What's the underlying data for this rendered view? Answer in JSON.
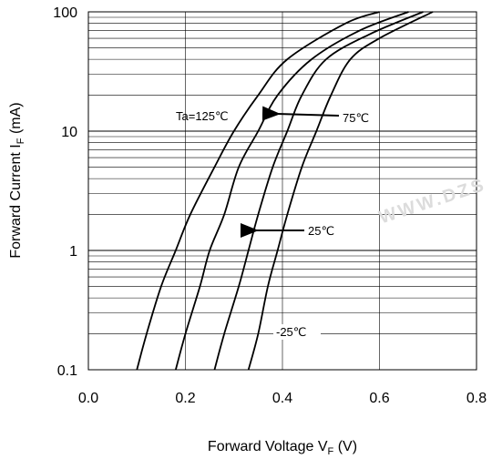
{
  "chart_data": {
    "type": "line",
    "title": "",
    "xlabel_main": "Forward Voltage  V",
    "xlabel_sub": "F",
    "xlabel_unit": " (V)",
    "ylabel_main": "Forward Current  I",
    "ylabel_sub": "F",
    "ylabel_unit": " (mA)",
    "x_scale": "linear",
    "y_scale": "log",
    "xlim": [
      0.0,
      0.8
    ],
    "ylim": [
      0.1,
      100
    ],
    "x_ticks": [
      0.0,
      0.2,
      0.4,
      0.6,
      0.8
    ],
    "x_tick_labels": [
      "0.0",
      "0.2",
      "0.4",
      "0.6",
      "0.8"
    ],
    "y_ticks": [
      0.1,
      1,
      10,
      100
    ],
    "y_tick_labels": [
      "0.1",
      "1",
      "10",
      "100"
    ],
    "grid": true,
    "series": [
      {
        "name": "Ta=125℃",
        "points": [
          [
            0.1,
            0.1
          ],
          [
            0.12,
            0.2
          ],
          [
            0.15,
            0.5
          ],
          [
            0.18,
            1
          ],
          [
            0.21,
            2
          ],
          [
            0.26,
            5
          ],
          [
            0.3,
            10
          ],
          [
            0.35,
            20
          ],
          [
            0.41,
            40
          ],
          [
            0.53,
            80
          ],
          [
            0.6,
            100
          ]
        ]
      },
      {
        "name": "75℃",
        "points": [
          [
            0.18,
            0.1
          ],
          [
            0.2,
            0.2
          ],
          [
            0.23,
            0.5
          ],
          [
            0.25,
            1
          ],
          [
            0.28,
            2
          ],
          [
            0.31,
            5
          ],
          [
            0.35,
            10
          ],
          [
            0.39,
            20
          ],
          [
            0.46,
            40
          ],
          [
            0.56,
            70
          ],
          [
            0.66,
            100
          ]
        ]
      },
      {
        "name": "25℃",
        "points": [
          [
            0.26,
            0.1
          ],
          [
            0.28,
            0.2
          ],
          [
            0.31,
            0.5
          ],
          [
            0.33,
            1
          ],
          [
            0.35,
            2
          ],
          [
            0.38,
            5
          ],
          [
            0.41,
            10
          ],
          [
            0.44,
            20
          ],
          [
            0.49,
            40
          ],
          [
            0.58,
            65
          ],
          [
            0.69,
            100
          ]
        ]
      },
      {
        "name": "-25℃",
        "points": [
          [
            0.33,
            0.1
          ],
          [
            0.35,
            0.2
          ],
          [
            0.37,
            0.5
          ],
          [
            0.39,
            1
          ],
          [
            0.41,
            2
          ],
          [
            0.44,
            5
          ],
          [
            0.47,
            10
          ],
          [
            0.5,
            20
          ],
          [
            0.54,
            40
          ],
          [
            0.6,
            60
          ],
          [
            0.71,
            100
          ]
        ]
      }
    ],
    "annotations": [
      {
        "text": "Ta=125℃",
        "arrow": false
      },
      {
        "text": "75℃",
        "arrow": true
      },
      {
        "text": "25℃",
        "arrow": true
      },
      {
        "text": "-25℃",
        "arrow": false
      }
    ]
  },
  "watermark": "WWW.DZS"
}
